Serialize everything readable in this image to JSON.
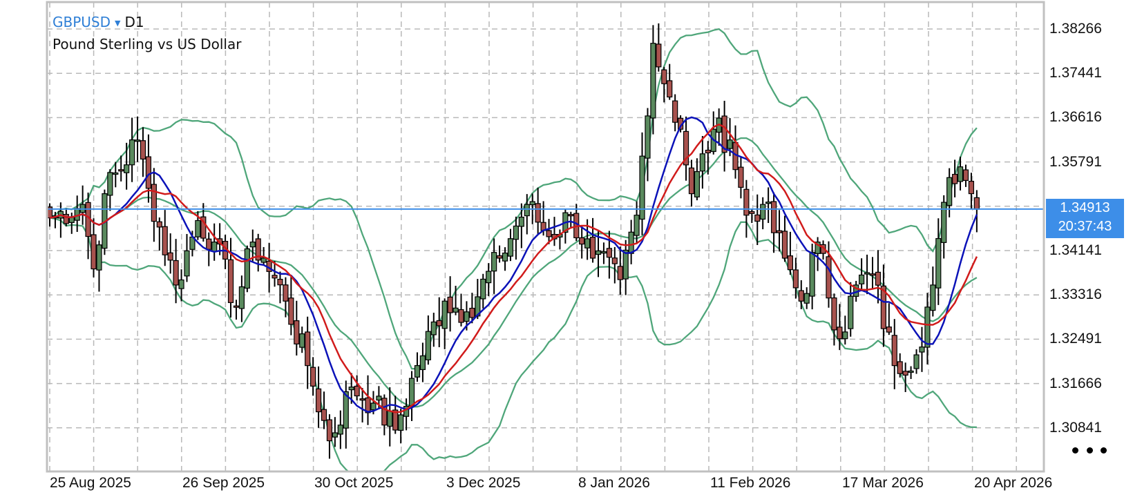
{
  "header": {
    "symbol": "GBPUSD",
    "symbol_dropdown_icon": "caret-down-icon",
    "timeframe": "D1",
    "description": "Pound Sterling vs US Dollar"
  },
  "price_axis": {
    "labels": [
      "1.38266",
      "1.37441",
      "1.36616",
      "1.35791",
      "1.34141",
      "1.33316",
      "1.32491",
      "1.31666",
      "1.30841"
    ]
  },
  "time_axis": {
    "labels": [
      "25 Aug 2025",
      "26 Sep 2025",
      "30 Oct 2025",
      "3 Dec 2025",
      "8 Jan 2026",
      "11 Feb 2026",
      "17 Mar 2026",
      "20 Apr 2026"
    ]
  },
  "current_price": {
    "price": "1.34913",
    "countdown": "20:37:43"
  },
  "more_menu": {
    "icon": "more-dots-icon"
  },
  "colors": {
    "bull_body": "#5a8a5e",
    "bear_body": "#a8524e",
    "wick": "#000000",
    "ma_fast": "#0b12b8",
    "ma_slow": "#d11b1b",
    "bands": "#4fa67a",
    "price_line": "#3d8ee8",
    "grid": "#b8b8b8",
    "border": "#c0c0c0",
    "symbol_text": "#2f7fd6"
  },
  "chart_data": {
    "type": "candlestick",
    "title": "GBPUSD D1 - Pound Sterling vs US Dollar",
    "xlabel": "",
    "ylabel": "",
    "ylim": [
      1.304,
      1.388
    ],
    "grid": true,
    "x_tick_labels": [
      "25 Aug 2025",
      "26 Sep 2025",
      "30 Oct 2025",
      "3 Dec 2025",
      "8 Jan 2026",
      "11 Feb 2026",
      "17 Mar 2026",
      "20 Apr 2026"
    ],
    "y_tick_labels": [
      1.38266,
      1.37441,
      1.36616,
      1.35791,
      1.34141,
      1.33316,
      1.32491,
      1.31666,
      1.30841
    ],
    "current_price": 1.34913,
    "bar_count": 170,
    "indicators": [
      "Moving Average (blue)",
      "Moving Average (red)",
      "Bollinger Bands (green)"
    ],
    "close_anchors": [
      [
        0,
        1.3475
      ],
      [
        6,
        1.35
      ],
      [
        8,
        1.338
      ],
      [
        10,
        1.352
      ],
      [
        16,
        1.362
      ],
      [
        18,
        1.353
      ],
      [
        23,
        1.335
      ],
      [
        27,
        1.347
      ],
      [
        30,
        1.343
      ],
      [
        34,
        1.331
      ],
      [
        37,
        1.343
      ],
      [
        39,
        1.34
      ],
      [
        43,
        1.332
      ],
      [
        47,
        1.32
      ],
      [
        51,
        1.306
      ],
      [
        55,
        1.316
      ],
      [
        59,
        1.313
      ],
      [
        63,
        1.308
      ],
      [
        67,
        1.32
      ],
      [
        72,
        1.332
      ],
      [
        76,
        1.33
      ],
      [
        82,
        1.34
      ],
      [
        87,
        1.35
      ],
      [
        91,
        1.344
      ],
      [
        95,
        1.348
      ],
      [
        99,
        1.34
      ],
      [
        104,
        1.336
      ],
      [
        107,
        1.348
      ],
      [
        110,
        1.38
      ],
      [
        113,
        1.37
      ],
      [
        115,
        1.364
      ],
      [
        117,
        1.352
      ],
      [
        121,
        1.364
      ],
      [
        124,
        1.362
      ],
      [
        127,
        1.348
      ],
      [
        130,
        1.35
      ],
      [
        134,
        1.34
      ],
      [
        137,
        1.332
      ],
      [
        140,
        1.343
      ],
      [
        144,
        1.325
      ],
      [
        147,
        1.335
      ],
      [
        150,
        1.337
      ],
      [
        154,
        1.32
      ],
      [
        158,
        1.322
      ],
      [
        161,
        1.335
      ],
      [
        164,
        1.355
      ],
      [
        166,
        1.357
      ],
      [
        168,
        1.352
      ],
      [
        169,
        1.3491
      ]
    ]
  }
}
